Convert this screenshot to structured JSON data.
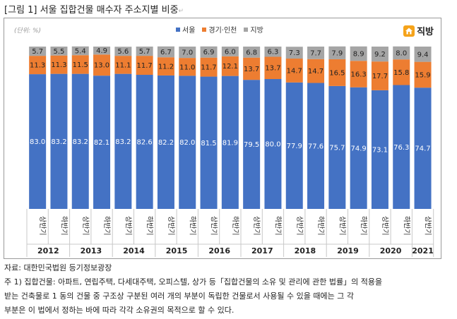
{
  "title": "[그림 1] 서울 집합건물 매수자 주소지별 비중",
  "title_mark": "↵",
  "unit_label": "(단위: %)",
  "brand": {
    "name": "직방",
    "icon": "house-logo-icon",
    "color": "#f5a31a"
  },
  "colors": {
    "seoul": "#4472c4",
    "gyeonggi": "#ed7d31",
    "other": "#a5a5a5"
  },
  "chart_data": {
    "type": "bar",
    "stacked": true,
    "orientation": "vertical",
    "ylim": [
      0,
      100
    ],
    "grid": false,
    "legend_position": "top-center",
    "categories": [
      "상반기",
      "하반기",
      "상반기",
      "하반기",
      "상반기",
      "하반기",
      "상반기",
      "하반기",
      "상반기",
      "하반기",
      "상반기",
      "하반기",
      "상반기",
      "하반기",
      "상반기",
      "하반기",
      "상반기",
      "하반기",
      "상반기"
    ],
    "years": [
      {
        "label": "2012",
        "span": 2
      },
      {
        "label": "2013",
        "span": 2
      },
      {
        "label": "2014",
        "span": 2
      },
      {
        "label": "2015",
        "span": 2
      },
      {
        "label": "2016",
        "span": 2
      },
      {
        "label": "2017",
        "span": 2
      },
      {
        "label": "2018",
        "span": 2
      },
      {
        "label": "2019",
        "span": 2
      },
      {
        "label": "2020",
        "span": 2
      },
      {
        "label": "2021",
        "span": 1
      }
    ],
    "series": [
      {
        "name": "서울",
        "values": [
          83.0,
          83.2,
          83.2,
          82.1,
          83.2,
          82.6,
          82.2,
          82.0,
          81.5,
          81.9,
          79.5,
          80.0,
          77.9,
          77.6,
          75.7,
          74.9,
          73.1,
          76.3,
          74.7
        ]
      },
      {
        "name": "경기·인천",
        "values": [
          11.3,
          11.3,
          11.5,
          13.0,
          11.1,
          11.7,
          11.2,
          11.0,
          11.7,
          12.1,
          13.7,
          13.7,
          14.7,
          14.7,
          16.5,
          16.3,
          17.7,
          15.8,
          15.9
        ]
      },
      {
        "name": "지방",
        "values": [
          5.7,
          5.5,
          5.4,
          4.9,
          5.6,
          5.7,
          6.7,
          7.0,
          6.9,
          6.0,
          6.8,
          6.3,
          7.3,
          7.7,
          7.9,
          8.9,
          9.2,
          8.0,
          9.4
        ]
      }
    ]
  },
  "notes": {
    "source": "자료: 대한민국법원 등기정보광장",
    "footnote_1": "주 1) 집합건물: 아파트, 연립주택, 다세대주택, 오피스텔, 상가 등「집합건물의 소유 및 관리에 관한 법률」의 적용을",
    "footnote_2": "받는 건축물로 1 동의 건물 중 구조상 구분된 여러 개의 부분이 독립한 건물로서 사용될 수 있을 때에는 그 각",
    "footnote_3": "부분은 이 법에서 정하는 바에 따라 각각 소유권의 목적으로 할 수 있다."
  }
}
